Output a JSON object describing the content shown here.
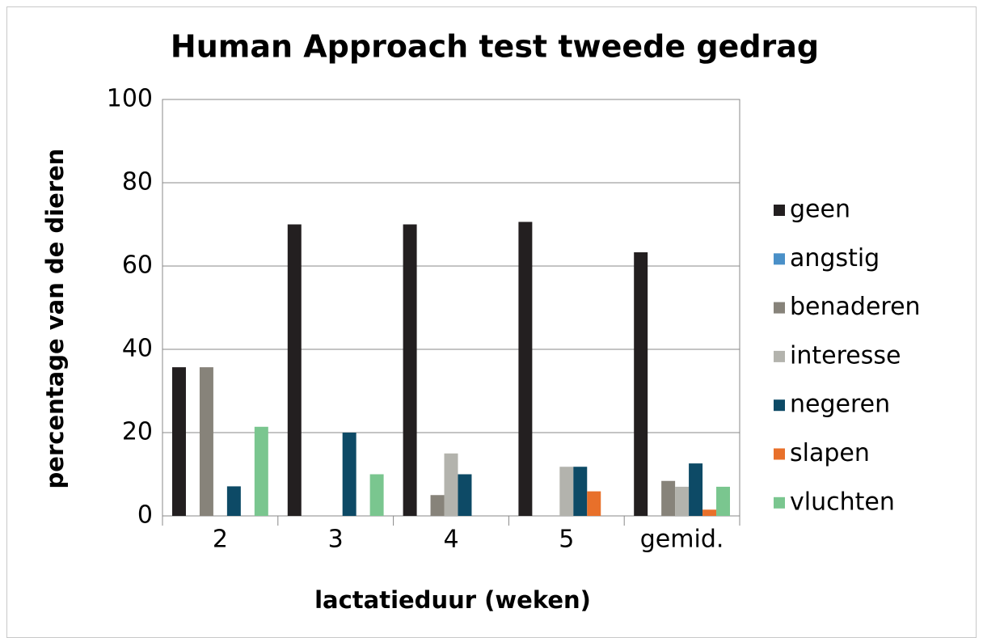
{
  "chart_data": {
    "type": "bar",
    "title": "Human Approach test tweede gedrag",
    "x_label": "lactatieduur (weken)",
    "y_label": "percentage van de dieren",
    "categories": [
      "2",
      "3",
      "4",
      "5",
      "gemid."
    ],
    "series": [
      {
        "name": "geen",
        "color": "#231f20",
        "values": [
          35.7,
          70,
          70,
          70.6,
          63.3
        ]
      },
      {
        "name": "angstig",
        "color": "#4a90c8",
        "values": [
          0,
          0,
          0,
          0,
          0
        ]
      },
      {
        "name": "benaderen",
        "color": "#87837a",
        "values": [
          35.7,
          0,
          5,
          0,
          8.4
        ]
      },
      {
        "name": "interesse",
        "color": "#b3b3ad",
        "values": [
          0,
          0,
          15,
          11.8,
          7
        ]
      },
      {
        "name": "negeren",
        "color": "#0d4a66",
        "values": [
          7.1,
          20,
          10,
          11.8,
          12.6
        ]
      },
      {
        "name": "slapen",
        "color": "#e8702a",
        "values": [
          0,
          0,
          0,
          5.9,
          1.5
        ]
      },
      {
        "name": "vluchten",
        "color": "#7ac68f",
        "values": [
          21.4,
          10,
          0,
          0,
          7
        ]
      }
    ],
    "ylim": [
      0,
      100
    ],
    "yticks": [
      0,
      20,
      40,
      60,
      80,
      100
    ],
    "grid": true,
    "legend": "right"
  }
}
